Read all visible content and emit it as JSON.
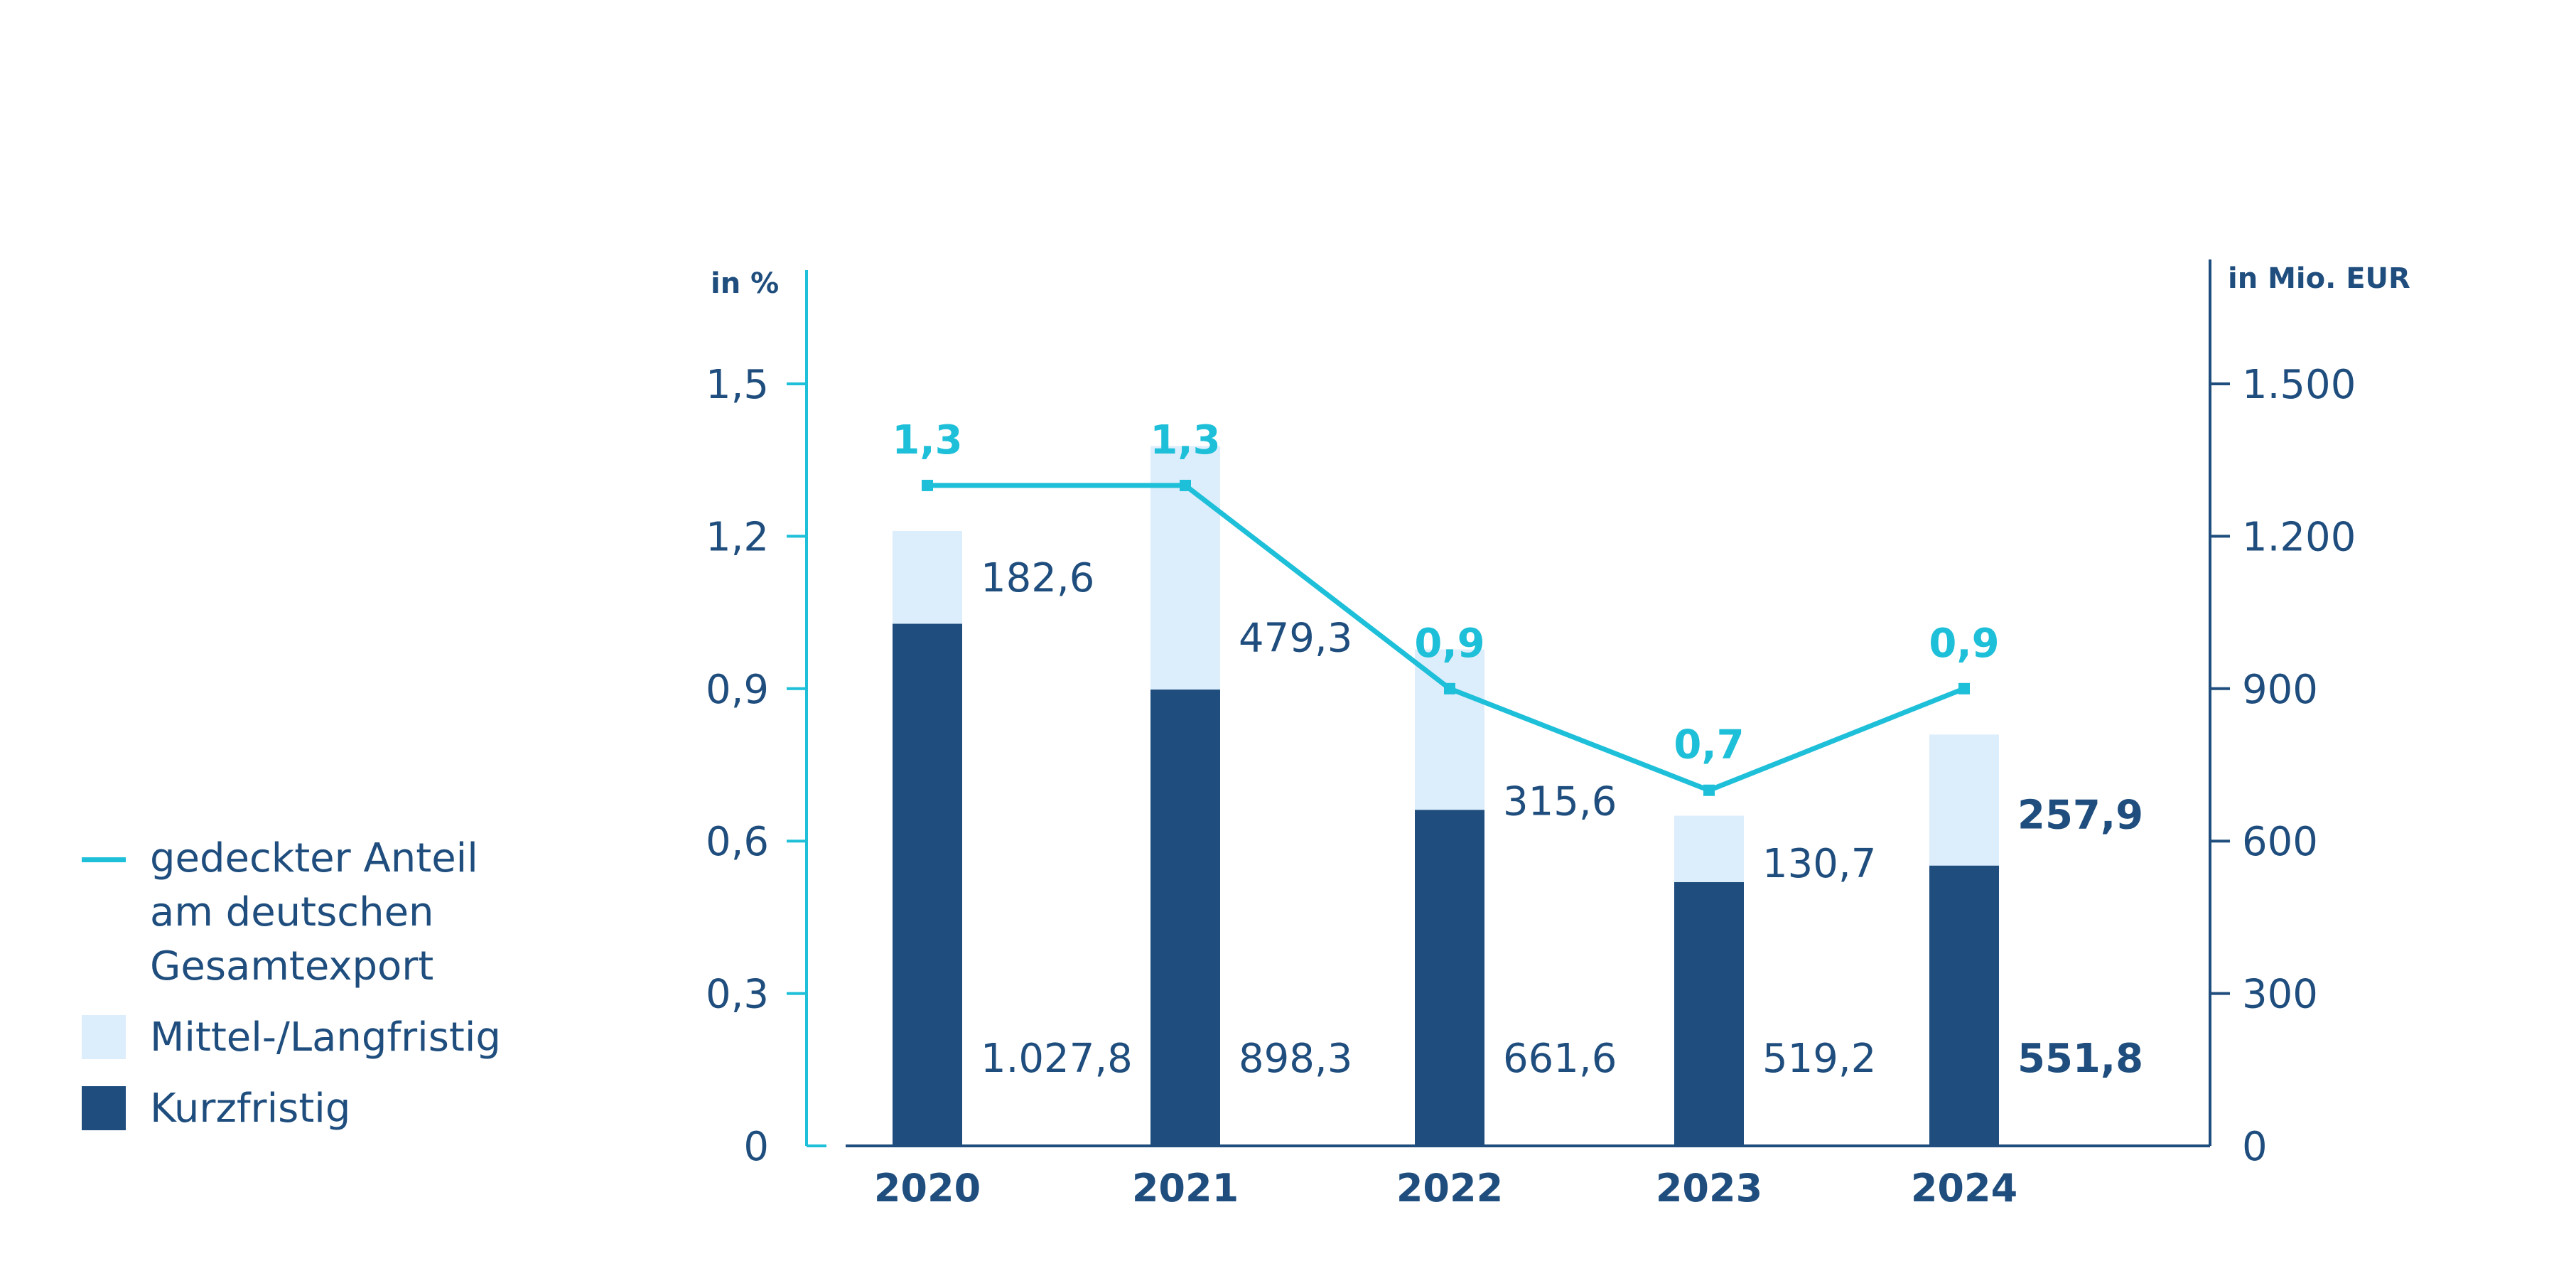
{
  "chart_data": {
    "type": "bar",
    "categories": [
      "2020",
      "2021",
      "2022",
      "2023",
      "2024"
    ],
    "series": [
      {
        "name": "Kurzfristig",
        "values": [
          1027.8,
          898.3,
          661.6,
          519.2,
          551.8
        ],
        "labels": [
          "1.027,8",
          "898,3",
          "661,6",
          "519,2",
          "551,8"
        ],
        "color": "#1f4e7e"
      },
      {
        "name": "Mittel-/Langfristig",
        "values": [
          182.6,
          479.3,
          315.6,
          130.7,
          257.9
        ],
        "labels": [
          "182,6",
          "479,3",
          "315,6",
          "130,7",
          "257,9"
        ],
        "color": "#dcedfb"
      }
    ],
    "line_series": {
      "name": "gedeckter Anteil\nam deutschen\nGesamtexport",
      "values": [
        1.3,
        1.3,
        0.9,
        0.7,
        0.9
      ],
      "labels": [
        "1,3",
        "1,3",
        "0,9",
        "0,7",
        "0,9"
      ],
      "color": "#1ebfd8"
    },
    "y_left": {
      "unit": "in %",
      "range": [
        0,
        1.5
      ],
      "ticks": [
        "0",
        "0,3",
        "0,6",
        "0,9",
        "1,2",
        "1,5"
      ],
      "tick_values": [
        0,
        0.3,
        0.6,
        0.9,
        1.2,
        1.5
      ],
      "color": "#1ebfd8"
    },
    "y_right": {
      "unit": "in Mio. EUR",
      "range": [
        0,
        1500
      ],
      "ticks": [
        "0",
        "300",
        "600",
        "900",
        "1.200",
        "1.500"
      ],
      "tick_values": [
        0,
        300,
        600,
        900,
        1200,
        1500
      ],
      "color": "#1f4e7e"
    },
    "bold_labels_for": [
      "2024"
    ],
    "legend_position": "left"
  }
}
